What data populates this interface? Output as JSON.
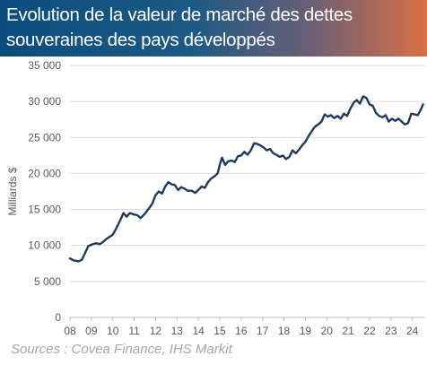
{
  "header": {
    "title_line1": "Evolution de la valeur de marché des dettes",
    "title_line2": "souveraines des pays développés"
  },
  "source": "Sources : Covea Finance, IHS Markit",
  "colors": {
    "series": "#1f3a5a",
    "grid": "#d9d9d9",
    "axis": "#bfbfbf",
    "header_start": "#0a4c7c",
    "header_end": "#d87045"
  },
  "chart_data": {
    "type": "line",
    "ylabel": "Milliards $",
    "xlabel": "",
    "ylim": [
      0,
      35000
    ],
    "xlim": [
      2008,
      2024.6
    ],
    "yticks": [
      0,
      5000,
      10000,
      15000,
      20000,
      25000,
      30000,
      35000
    ],
    "ytick_labels": [
      "0",
      "5 000",
      "10 000",
      "15 000",
      "20 000",
      "25 000",
      "30 000",
      "35 000"
    ],
    "xticks": [
      2008,
      2009,
      2010,
      2011,
      2012,
      2013,
      2014,
      2015,
      2016,
      2017,
      2018,
      2019,
      2020,
      2021,
      2022,
      2023,
      2024
    ],
    "xtick_labels": [
      "08",
      "09",
      "10",
      "11",
      "12",
      "13",
      "14",
      "15",
      "16",
      "17",
      "18",
      "19",
      "20",
      "21",
      "22",
      "23",
      "24"
    ],
    "grid": "horizontal",
    "series": [
      {
        "x": [
          2008.0,
          2008.2,
          2008.4,
          2008.55,
          2008.7,
          2008.85,
          2009.0,
          2009.2,
          2009.4,
          2009.55,
          2009.7,
          2009.85,
          2010.0,
          2010.15,
          2010.3,
          2010.5,
          2010.65,
          2010.8,
          2011.0,
          2011.15,
          2011.3,
          2011.5,
          2011.7,
          2011.85,
          2012.0,
          2012.15,
          2012.3,
          2012.45,
          2012.6,
          2012.75,
          2012.9,
          2013.05,
          2013.2,
          2013.35,
          2013.5,
          2013.7,
          2013.85,
          2014.0,
          2014.15,
          2014.3,
          2014.45,
          2014.6,
          2014.75,
          2014.9,
          2015.0,
          2015.1,
          2015.25,
          2015.4,
          2015.55,
          2015.7,
          2015.85,
          2016.0,
          2016.15,
          2016.3,
          2016.45,
          2016.6,
          2016.75,
          2016.9,
          2017.05,
          2017.2,
          2017.35,
          2017.5,
          2017.65,
          2017.8,
          2017.95,
          2018.1,
          2018.25,
          2018.4,
          2018.55,
          2018.7,
          2018.85,
          2019.0,
          2019.15,
          2019.3,
          2019.45,
          2019.6,
          2019.75,
          2019.9,
          2020.05,
          2020.2,
          2020.35,
          2020.5,
          2020.65,
          2020.8,
          2020.95,
          2021.1,
          2021.25,
          2021.4,
          2021.55,
          2021.7,
          2021.85,
          2022.0,
          2022.15,
          2022.3,
          2022.45,
          2022.6,
          2022.75,
          2022.9,
          2023.05,
          2023.2,
          2023.35,
          2023.5,
          2023.65,
          2023.8,
          2023.95,
          2024.1,
          2024.25,
          2024.4,
          2024.5
        ],
        "y": [
          8200,
          7900,
          7800,
          8000,
          8900,
          9900,
          10100,
          10300,
          10200,
          10500,
          10900,
          11200,
          11500,
          12300,
          13200,
          14500,
          14000,
          14500,
          14300,
          14200,
          13800,
          14400,
          15200,
          15800,
          17000,
          17500,
          17200,
          18200,
          18800,
          18500,
          18400,
          17700,
          18100,
          17900,
          17600,
          17600,
          17300,
          17700,
          18200,
          18000,
          18800,
          19300,
          19600,
          20000,
          21200,
          22200,
          21200,
          21700,
          21800,
          21600,
          22400,
          22500,
          23000,
          22600,
          23200,
          24200,
          24100,
          23900,
          23600,
          23200,
          23400,
          22800,
          22600,
          22300,
          22500,
          22000,
          22300,
          23200,
          22800,
          23300,
          23900,
          24400,
          25200,
          25900,
          26500,
          26800,
          27200,
          28200,
          27900,
          28100,
          27700,
          28000,
          27600,
          28300,
          28000,
          29000,
          29800,
          30200,
          29700,
          30700,
          30500,
          29600,
          29400,
          28400,
          28000,
          27800,
          28100,
          27200,
          27600,
          27300,
          27600,
          27200,
          26800,
          27000,
          28300,
          28200,
          28100,
          28900,
          29600
        ]
      }
    ]
  }
}
